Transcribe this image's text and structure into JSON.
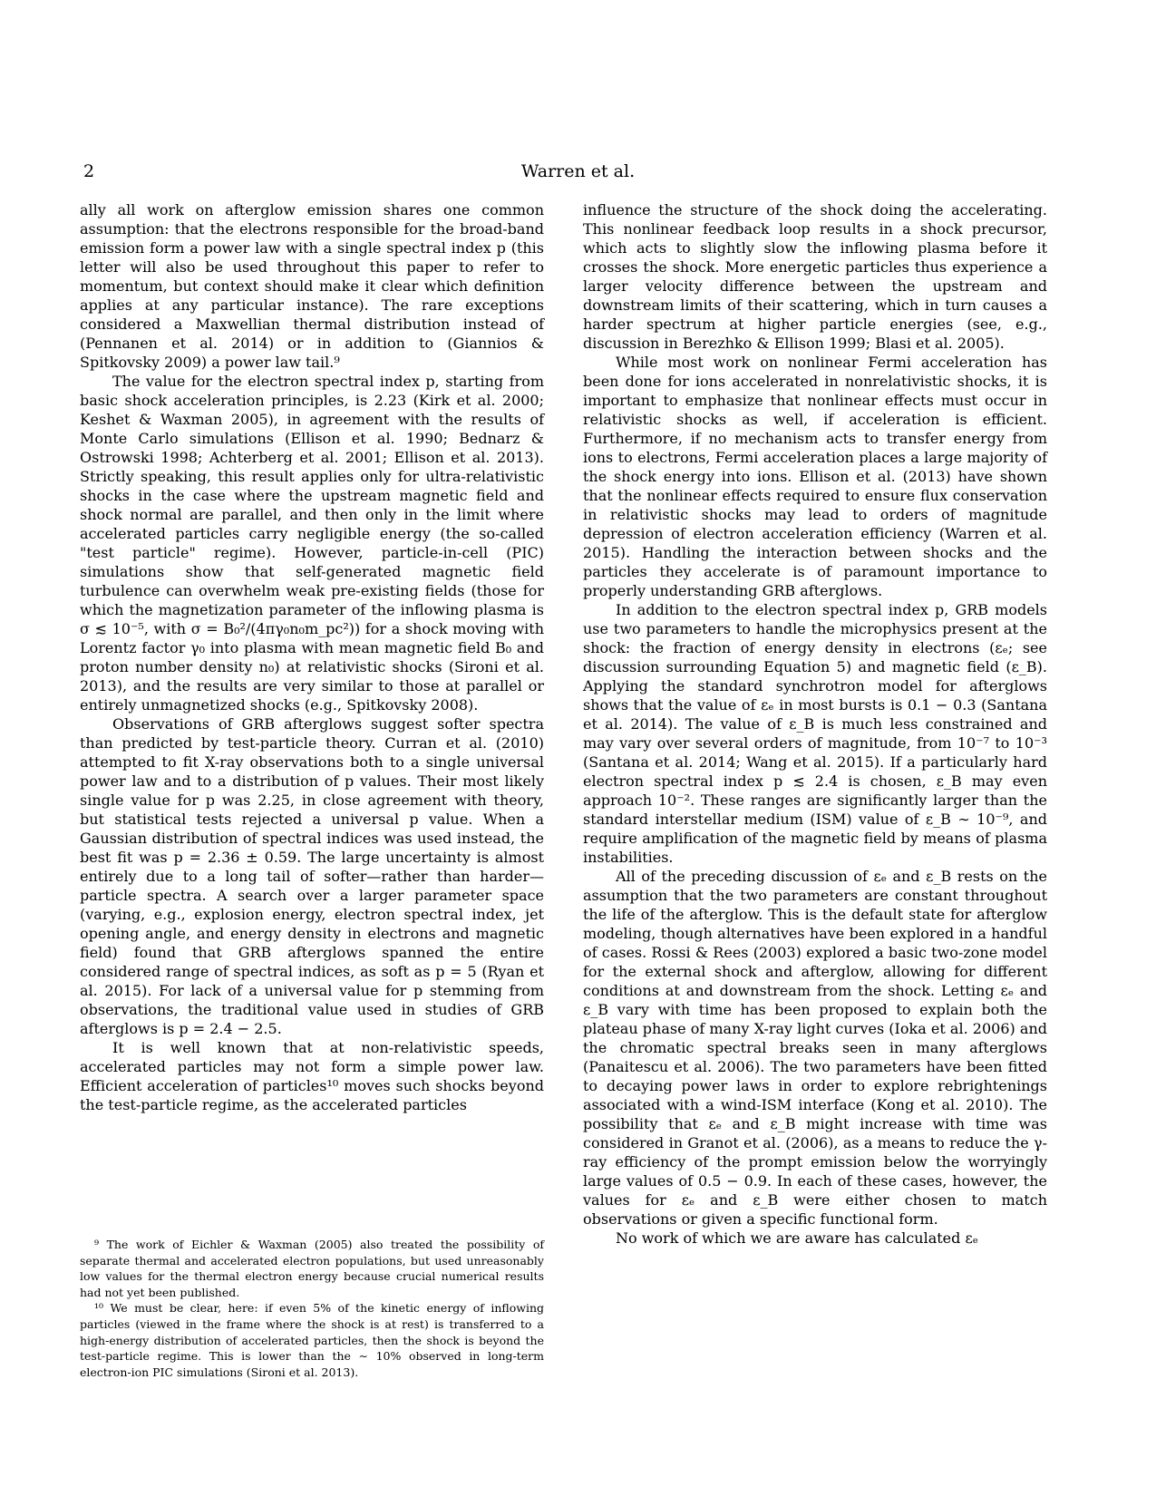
{
  "header": {
    "page_number": "2",
    "running_head": "Warren et al."
  },
  "left_column": {
    "paragraphs": [
      "ally all work on afterglow emission shares one common assumption: that the electrons responsible for the broad-band emission form a power law with a single spectral index p (this letter will also be used throughout this paper to refer to momentum, but context should make it clear which definition applies at any particular instance). The rare exceptions considered a Maxwellian thermal distribution instead of (Pennanen et al. 2014) or in addition to (Giannios & Spitkovsky 2009) a power law tail.⁹",
      "The value for the electron spectral index p, starting from basic shock acceleration principles, is 2.23 (Kirk et al. 2000; Keshet & Waxman 2005), in agreement with the results of Monte Carlo simulations (Ellison et al. 1990; Bednarz & Ostrowski 1998; Achterberg et al. 2001; Ellison et al. 2013). Strictly speaking, this result applies only for ultra-relativistic shocks in the case where the upstream magnetic field and shock normal are parallel, and then only in the limit where accelerated particles carry negligible energy (the so-called \"test particle\" regime). However, particle-in-cell (PIC) simulations show that self-generated magnetic field turbulence can overwhelm weak pre-existing fields (those for which the magnetization parameter of the inflowing plasma is σ ≲ 10⁻⁵, with σ = B₀²/(4πγ₀n₀m_pc²)) for a shock moving with Lorentz factor γ₀ into plasma with mean magnetic field B₀ and proton number density n₀) at relativistic shocks (Sironi et al. 2013), and the results are very similar to those at parallel or entirely unmagnetized shocks (e.g., Spitkovsky 2008).",
      "Observations of GRB afterglows suggest softer spectra than predicted by test-particle theory. Curran et al. (2010) attempted to fit X-ray observations both to a single universal power law and to a distribution of p values. Their most likely single value for p was 2.25, in close agreement with theory, but statistical tests rejected a universal p value. When a Gaussian distribution of spectral indices was used instead, the best fit was p = 2.36 ± 0.59. The large uncertainty is almost entirely due to a long tail of softer—rather than harder—particle spectra. A search over a larger parameter space (varying, e.g., explosion energy, electron spectral index, jet opening angle, and energy density in electrons and magnetic field) found that GRB afterglows spanned the entire considered range of spectral indices, as soft as p = 5 (Ryan et al. 2015). For lack of a universal value for p stemming from observations, the traditional value used in studies of GRB afterglows is p = 2.4 − 2.5.",
      "It is well known that at non-relativistic speeds, accelerated particles may not form a simple power law. Efficient acceleration of particles¹⁰ moves such shocks beyond the test-particle regime, as the accelerated particles"
    ]
  },
  "footnotes": [
    "⁹ The work of Eichler & Waxman (2005) also treated the possibility of separate thermal and accelerated electron populations, but used unreasonably low values for the thermal electron energy because crucial numerical results had not yet been published.",
    "¹⁰ We must be clear, here: if even 5% of the kinetic energy of inflowing particles (viewed in the frame where the shock is at rest) is transferred to a high-energy distribution of accelerated particles, then the shock is beyond the test-particle regime. This is lower than the ∼ 10% observed in long-term electron-ion PIC simulations (Sironi et al. 2013)."
  ],
  "right_column": {
    "paragraphs": [
      "influence the structure of the shock doing the accelerating. This nonlinear feedback loop results in a shock precursor, which acts to slightly slow the inflowing plasma before it crosses the shock. More energetic particles thus experience a larger velocity difference between the upstream and downstream limits of their scattering, which in turn causes a harder spectrum at higher particle energies (see, e.g., discussion in Berezhko & Ellison 1999; Blasi et al. 2005).",
      "While most work on nonlinear Fermi acceleration has been done for ions accelerated in nonrelativistic shocks, it is important to emphasize that nonlinear effects must occur in relativistic shocks as well, if acceleration is efficient. Furthermore, if no mechanism acts to transfer energy from ions to electrons, Fermi acceleration places a large majority of the shock energy into ions. Ellison et al. (2013) have shown that the nonlinear effects required to ensure flux conservation in relativistic shocks may lead to orders of magnitude depression of electron acceleration efficiency (Warren et al. 2015). Handling the interaction between shocks and the particles they accelerate is of paramount importance to properly understanding GRB afterglows.",
      "In addition to the electron spectral index p, GRB models use two parameters to handle the microphysics present at the shock: the fraction of energy density in electrons (εₑ; see discussion surrounding Equation 5) and magnetic field (ε_B). Applying the standard synchrotron model for afterglows shows that the value of εₑ in most bursts is 0.1 − 0.3 (Santana et al. 2014). The value of ε_B is much less constrained and may vary over several orders of magnitude, from 10⁻⁷ to 10⁻³ (Santana et al. 2014; Wang et al. 2015). If a particularly hard electron spectral index p ≲ 2.4 is chosen, ε_B may even approach 10⁻². These ranges are significantly larger than the standard interstellar medium (ISM) value of ε_B ∼ 10⁻⁹, and require amplification of the magnetic field by means of plasma instabilities.",
      "All of the preceding discussion of εₑ and ε_B rests on the assumption that the two parameters are constant throughout the life of the afterglow. This is the default state for afterglow modeling, though alternatives have been explored in a handful of cases. Rossi & Rees (2003) explored a basic two-zone model for the external shock and afterglow, allowing for different conditions at and downstream from the shock. Letting εₑ and ε_B vary with time has been proposed to explain both the plateau phase of many X-ray light curves (Ioka et al. 2006) and the chromatic spectral breaks seen in many afterglows (Panaitescu et al. 2006). The two parameters have been fitted to decaying power laws in order to explore rebrightenings associated with a wind-ISM interface (Kong et al. 2010). The possibility that εₑ and ε_B might increase with time was considered in Granot et al. (2006), as a means to reduce the γ-ray efficiency of the prompt emission below the worryingly large values of 0.5 − 0.9. In each of these cases, however, the values for εₑ and ε_B were either chosen to match observations or given a specific functional form.",
      "No work of which we are aware has calculated εₑ"
    ]
  }
}
